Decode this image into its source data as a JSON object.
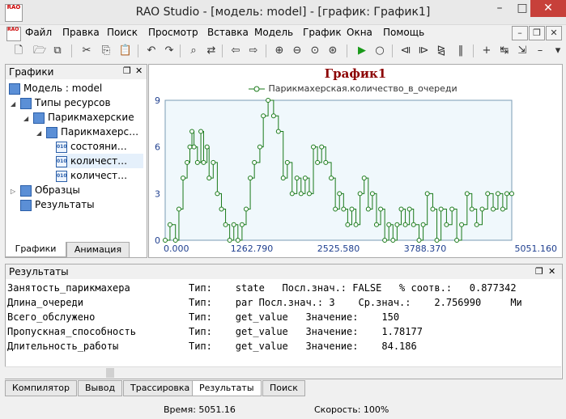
{
  "window": {
    "title": "RAO Studio - [модель: model] - [график: График1]",
    "app_icon_text": "RAO"
  },
  "menu": [
    "Файл",
    "Правка",
    "Поиск",
    "Просмотр",
    "Вставка",
    "Модель",
    "График",
    "Окна",
    "Помощь"
  ],
  "left_panel": {
    "title": "Графики",
    "tree": [
      {
        "label": "Модель : model",
        "level": 0,
        "expander": "",
        "icon": "model-icon",
        "selected": false
      },
      {
        "label": "Типы ресурсов",
        "level": 1,
        "expander": "◢",
        "icon": "folder-icon",
        "selected": false
      },
      {
        "label": "Парикмахерские",
        "level": 2,
        "expander": "◢",
        "icon": "folder-icon",
        "selected": false
      },
      {
        "label": "Парикмахерс…",
        "level": 3,
        "expander": "◢",
        "icon": "folder-icon",
        "selected": false
      },
      {
        "label": "состояни…",
        "level": 4,
        "expander": "",
        "icon": "value-icon",
        "selected": false
      },
      {
        "label": "количест…",
        "level": 4,
        "expander": "",
        "icon": "value-icon",
        "selected": true
      },
      {
        "label": "количест…",
        "level": 4,
        "expander": "",
        "icon": "value-icon",
        "selected": false
      },
      {
        "label": "Образцы",
        "level": 1,
        "expander": "▷",
        "icon": "folder-icon",
        "selected": false
      },
      {
        "label": "Результаты",
        "level": 1,
        "expander": "",
        "icon": "folder-icon",
        "selected": false
      }
    ],
    "tabs": [
      "Графики",
      "Анимация"
    ]
  },
  "chart_data": {
    "type": "line",
    "title": "График1",
    "series": [
      {
        "name": "Парикмахерская.количество_в_очереди",
        "color": "#1a7a1a",
        "x": [
          0,
          70,
          150,
          200,
          260,
          320,
          360,
          390,
          420,
          470,
          520,
          560,
          610,
          640,
          700,
          760,
          820,
          880,
          940,
          1000,
          1060,
          1120,
          1180,
          1240,
          1300,
          1380,
          1430,
          1500,
          1580,
          1650,
          1720,
          1780,
          1850,
          1920,
          1980,
          2040,
          2100,
          2160,
          2220,
          2280,
          2340,
          2420,
          2480,
          2540,
          2600,
          2660,
          2720,
          2780,
          2840,
          2900,
          2960,
          3020,
          3080,
          3140,
          3200,
          3260,
          3320,
          3380,
          3440,
          3500,
          3560,
          3620,
          3700,
          3760,
          3820,
          3900,
          3960,
          4020,
          4100,
          4180,
          4250,
          4320,
          4400,
          4470,
          4540,
          4620,
          4700,
          4780,
          4850,
          4920,
          4980,
          5051.16
        ],
        "y": [
          0,
          1,
          0,
          2,
          4,
          5,
          6,
          7,
          6,
          5,
          7,
          5,
          6,
          4,
          5,
          3,
          2,
          1,
          0,
          1,
          0,
          1,
          2,
          4,
          5,
          6,
          8,
          9,
          8,
          7,
          4,
          5,
          3,
          4,
          3,
          4,
          3,
          6,
          5,
          6,
          5,
          4,
          2,
          3,
          2,
          1,
          2,
          1,
          3,
          4,
          2,
          3,
          1,
          2,
          0,
          1,
          0,
          1,
          2,
          1,
          2,
          1,
          0,
          1,
          3,
          2,
          0,
          2,
          1,
          2,
          0,
          1,
          3,
          2,
          1,
          2,
          3,
          2,
          3,
          2,
          3,
          3
        ]
      }
    ],
    "x_ticks": [
      "0.000",
      "1262.790",
      "2525.580",
      "3788.370",
      "5051.160"
    ],
    "y_ticks": [
      "0",
      "3",
      "6",
      "9"
    ],
    "xlim": [
      0,
      5051.16
    ],
    "ylim": [
      0,
      9
    ],
    "grid": false,
    "legend_placement": "top"
  },
  "results": {
    "title": "Результаты",
    "rows": [
      "Занятость_парикмахера          Тип:    state   Посл.знач.: FALSE   % соотв.:   0.877342",
      "Длина_очереди                  Тип:    par Посл.знач.: 3    Ср.знач.:    2.756990     Ми",
      "Всего_обслужено                Тип:    get_value   Значение:    150",
      "Пропускная_способность         Тип:    get_value   Значение:    1.78177",
      "Длительность_работы            Тип:    get_value   Значение:    84.186"
    ],
    "tabs": [
      "Компилятор",
      "Вывод",
      "Трассировка",
      "Результаты",
      "Поиск"
    ]
  },
  "status": {
    "time": "Время: 5051.16",
    "speed": "Скорость: 100%"
  }
}
